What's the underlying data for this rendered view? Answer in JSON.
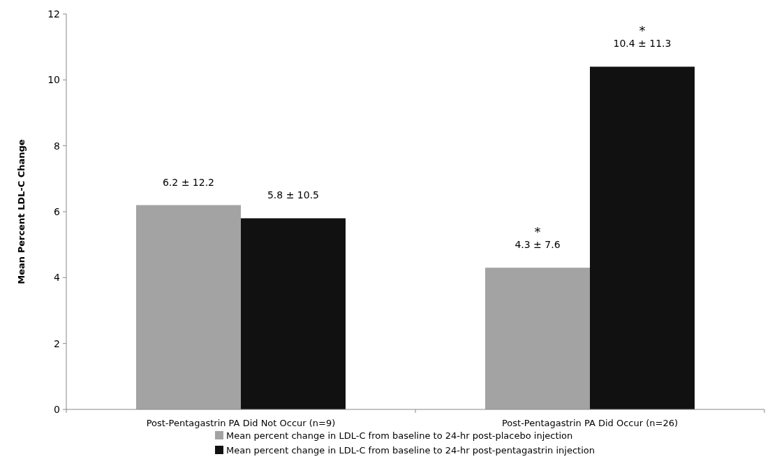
{
  "chart_data": {
    "type": "bar",
    "ylabel": "Mean Percent LDL-C Change",
    "categories": [
      "Post-Pentagastrin PA Did Not Occur (n=9)",
      "Post-Pentagastrin PA Did Occur (n=26)"
    ],
    "series": [
      {
        "name": "Mean percent change in LDL-C from baseline to 24-hr post-placebo injection",
        "color": "#a3a3a3",
        "values": [
          6.2,
          4.3
        ],
        "value_labels": [
          "6.2 ± 12.2",
          "4.3 ± 7.6"
        ]
      },
      {
        "name": "Mean percent change in LDL-C from baseline to 24-hr post-pentagastrin injection",
        "color": "#111111",
        "values": [
          5.8,
          10.4
        ],
        "value_labels": [
          "5.8 ± 10.5",
          "10.4 ± 11.3"
        ]
      }
    ],
    "ylim": [
      0,
      12
    ],
    "yticks": [
      0,
      2,
      4,
      6,
      8,
      10,
      12
    ],
    "grid": false,
    "legend": "bottom",
    "annotations": [
      "*",
      "*"
    ]
  }
}
